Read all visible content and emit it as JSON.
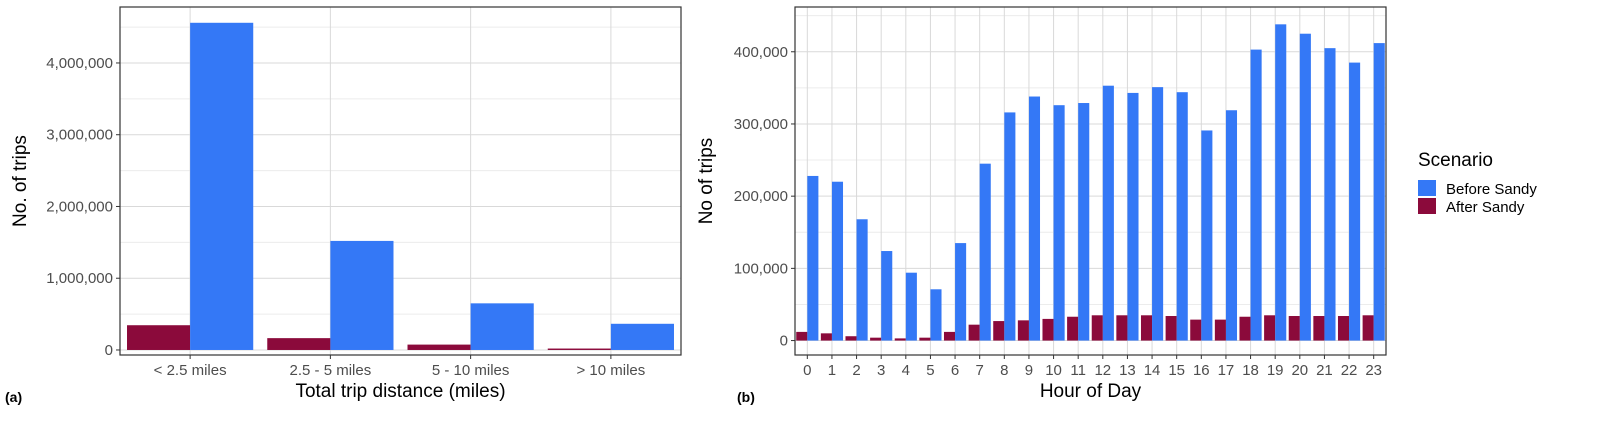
{
  "chart_data": [
    {
      "type": "bar",
      "panel_tag": "(a)",
      "xlabel": "Total trip distance (miles)",
      "ylabel": "No. of trips",
      "categories": [
        "< 2.5 miles",
        "2.5 - 5 miles",
        "5 - 10 miles",
        "> 10 miles"
      ],
      "series": [
        {
          "name": "After Sandy",
          "color": "#8b0a3b",
          "values": [
            345000,
            165000,
            75000,
            20000
          ]
        },
        {
          "name": "Before Sandy",
          "color": "#3478f6",
          "values": [
            4560000,
            1520000,
            650000,
            365000
          ]
        }
      ],
      "ylim": [
        -70000,
        4780000
      ],
      "yticks": [
        0,
        1000000,
        2000000,
        3000000,
        4000000
      ],
      "ytick_labels": [
        "0",
        "1,000,000",
        "2,000,000",
        "3,000,000",
        "4,000,000"
      ],
      "grid": true
    },
    {
      "type": "bar",
      "panel_tag": "(b)",
      "xlabel": "Hour of Day",
      "ylabel": "No of trips",
      "categories": [
        "0",
        "1",
        "2",
        "3",
        "4",
        "5",
        "6",
        "7",
        "8",
        "9",
        "10",
        "11",
        "12",
        "13",
        "14",
        "15",
        "16",
        "17",
        "18",
        "19",
        "20",
        "21",
        "22",
        "23"
      ],
      "series": [
        {
          "name": "After Sandy",
          "color": "#8b0a3b",
          "values": [
            12000,
            10000,
            6000,
            4000,
            3000,
            4000,
            12000,
            22000,
            27000,
            28000,
            30000,
            33000,
            35000,
            35000,
            35000,
            34000,
            29000,
            29000,
            33000,
            35000,
            34000,
            34000,
            34000,
            35000
          ]
        },
        {
          "name": "Before Sandy",
          "color": "#3478f6",
          "values": [
            228000,
            220000,
            168000,
            124000,
            94000,
            71000,
            135000,
            245000,
            316000,
            338000,
            326000,
            329000,
            353000,
            343000,
            351000,
            344000,
            291000,
            319000,
            403000,
            438000,
            425000,
            405000,
            385000,
            412000
          ]
        }
      ],
      "ylim": [
        -20000,
        462000
      ],
      "yticks": [
        0,
        100000,
        200000,
        300000,
        400000
      ],
      "ytick_labels": [
        "0",
        "100,000",
        "200,000",
        "300,000",
        "400,000"
      ],
      "grid": true
    }
  ],
  "legend": {
    "title": "Scenario",
    "placement": "right",
    "items": [
      {
        "label": "Before Sandy",
        "color": "#3478f6"
      },
      {
        "label": "After Sandy",
        "color": "#8b0a3b"
      }
    ]
  }
}
